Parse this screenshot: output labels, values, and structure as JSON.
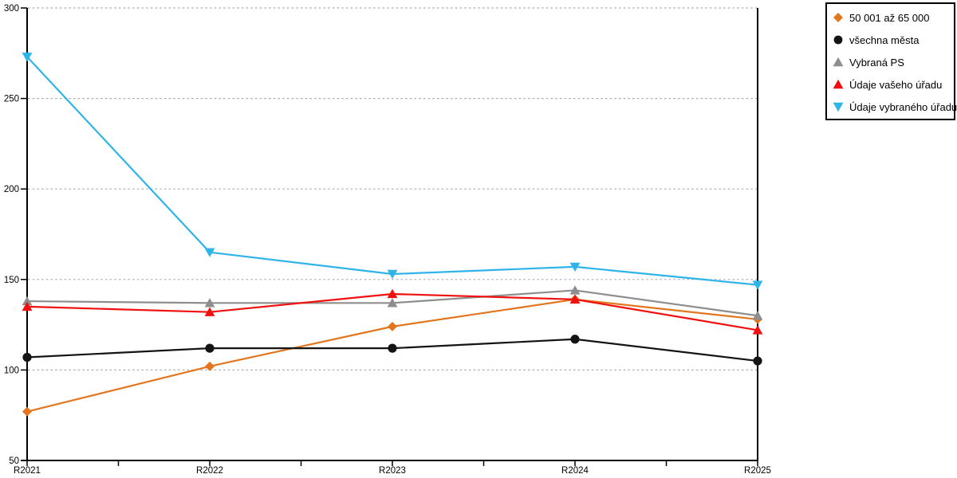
{
  "chart_data": {
    "type": "line",
    "title": "",
    "xlabel": "",
    "ylabel": "",
    "categories": [
      "R2021",
      "R2022",
      "R2023",
      "R2024",
      "R2025"
    ],
    "series": [
      {
        "name": "50 001 až 65 000",
        "marker": "diamond",
        "color": "#E2761E",
        "values": [
          77,
          102,
          124,
          139,
          128
        ]
      },
      {
        "name": "všechna města",
        "marker": "circle",
        "color": "#141414",
        "values": [
          107,
          112,
          112,
          117,
          105
        ]
      },
      {
        "name": "Vybraná PS",
        "marker": "triangle-up",
        "color": "#8E8E8E",
        "values": [
          138,
          137,
          137,
          144,
          130
        ]
      },
      {
        "name": "Údaje vašeho úřadu",
        "marker": "triangle-up",
        "color": "#F01010",
        "values": [
          135,
          132,
          142,
          139,
          122
        ]
      },
      {
        "name": "Údaje vybraného úřadu",
        "marker": "triangle-down",
        "color": "#2FB4EA",
        "values": [
          273,
          165,
          153,
          157,
          147
        ]
      }
    ],
    "ylim": [
      50,
      300
    ],
    "yticks": [
      50,
      100,
      150,
      200,
      250,
      300
    ],
    "grid": "horizontal-dotted",
    "gridline_color": "#ABABAB",
    "axis_color": "#000000",
    "tick_label_color": "#000000",
    "legend_position": "top-right"
  }
}
